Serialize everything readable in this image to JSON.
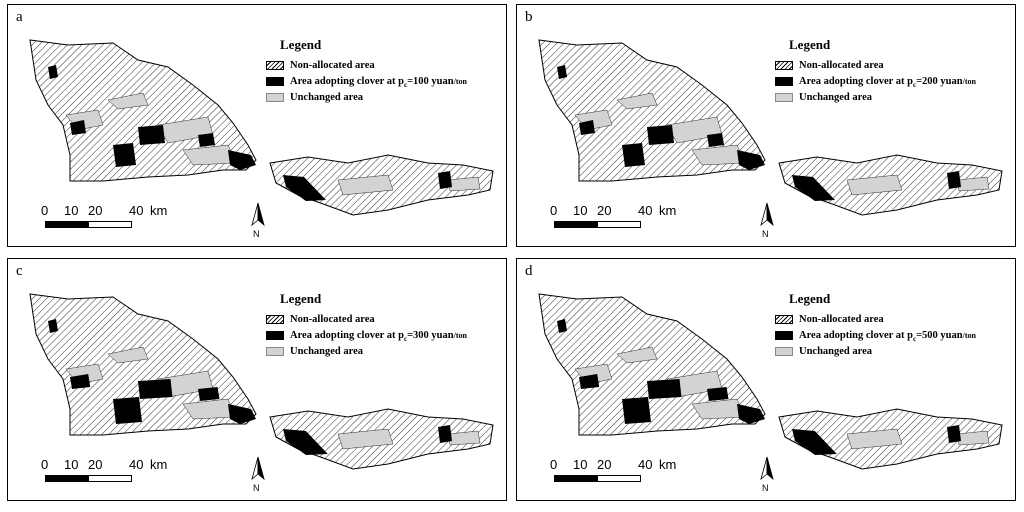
{
  "panels": [
    {
      "letter": "a",
      "price": "100"
    },
    {
      "letter": "b",
      "price": "200"
    },
    {
      "letter": "c",
      "price": "300"
    },
    {
      "letter": "d",
      "price": "500"
    }
  ],
  "legend": {
    "title": "Legend",
    "non_allocated": "Non-allocated area",
    "adopt_prefix": "Area adopting clover at p",
    "adopt_sub": "c",
    "adopt_unit": " yuan",
    "adopt_unit_tail": "/ton",
    "unchanged": "Unchanged area"
  },
  "scale": {
    "l0": "0",
    "l10": "10",
    "l20": "20",
    "l40": "40",
    "unit": "km"
  },
  "north_label": "N",
  "colors": {
    "adopted": "#000000",
    "unchanged": "#d3d3d3",
    "hatch": "#000000"
  }
}
